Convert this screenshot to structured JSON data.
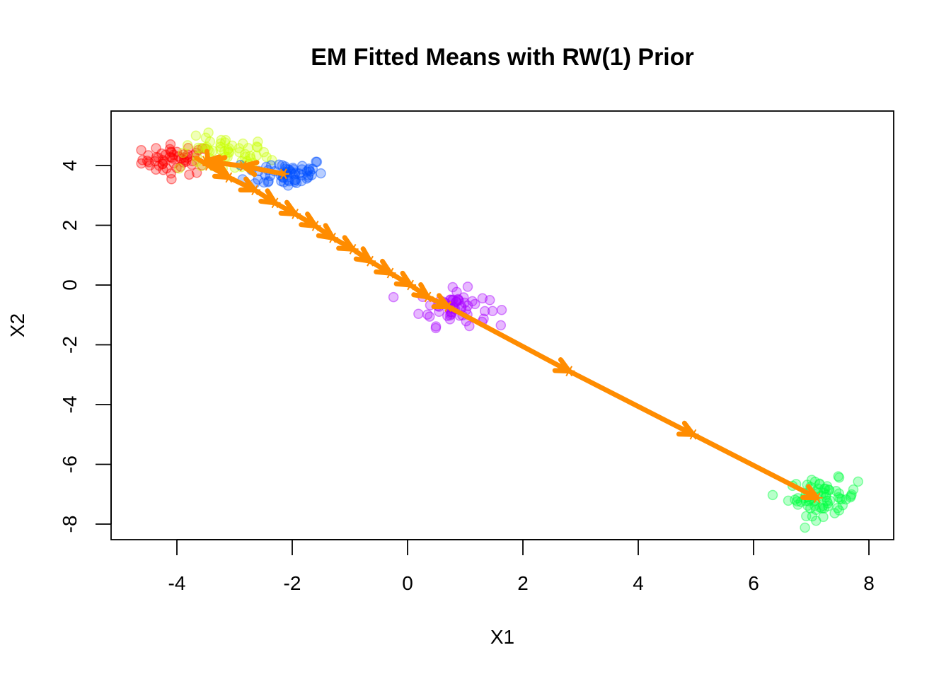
{
  "chart_data": {
    "type": "scatter",
    "title": "EM Fitted Means with RW(1) Prior",
    "xlabel": "X1",
    "ylabel": "X2",
    "xlim": [
      -5.15,
      8.4
    ],
    "ylim": [
      -8.6,
      5.8
    ],
    "xticks": [
      -4,
      -2,
      0,
      2,
      4,
      6,
      8
    ],
    "yticks": [
      -8,
      -6,
      -4,
      -2,
      0,
      2,
      4
    ],
    "grid": false,
    "legend": "none",
    "clusters": [
      {
        "color": "#ff0000",
        "center": [
          -4.0,
          4.2
        ],
        "spread": [
          0.3,
          0.25
        ],
        "n": 55
      },
      {
        "color": "#c8ff00",
        "center": [
          -3.2,
          4.35
        ],
        "spread": [
          0.4,
          0.3
        ],
        "n": 60
      },
      {
        "color": "#0050ff",
        "center": [
          -2.1,
          3.75
        ],
        "spread": [
          0.35,
          0.25
        ],
        "n": 60
      },
      {
        "color": "#a800ff",
        "center": [
          0.8,
          -0.75
        ],
        "spread": [
          0.3,
          0.3
        ],
        "n": 60
      },
      {
        "color": "#00ff40",
        "center": [
          7.2,
          -7.1
        ],
        "spread": [
          0.3,
          0.3
        ],
        "n": 70
      }
    ],
    "path": {
      "color": "#ff8c00",
      "points": [
        [
          -2.15,
          3.72
        ],
        [
          -2.85,
          3.98
        ],
        [
          -3.4,
          4.12
        ],
        [
          -3.5,
          4.15
        ],
        [
          -3.45,
          4.0
        ],
        [
          -3.1,
          3.6
        ],
        [
          -2.65,
          3.18
        ],
        [
          -2.3,
          2.75
        ],
        [
          -1.95,
          2.38
        ],
        [
          -1.6,
          1.98
        ],
        [
          -1.3,
          1.58
        ],
        [
          -0.95,
          1.2
        ],
        [
          -0.65,
          0.8
        ],
        [
          -0.3,
          0.4
        ],
        [
          0.05,
          0.0
        ],
        [
          0.35,
          -0.4
        ],
        [
          0.7,
          -0.72
        ],
        [
          2.8,
          -2.88
        ],
        [
          4.95,
          -5.0
        ],
        [
          7.1,
          -7.12
        ]
      ]
    }
  }
}
